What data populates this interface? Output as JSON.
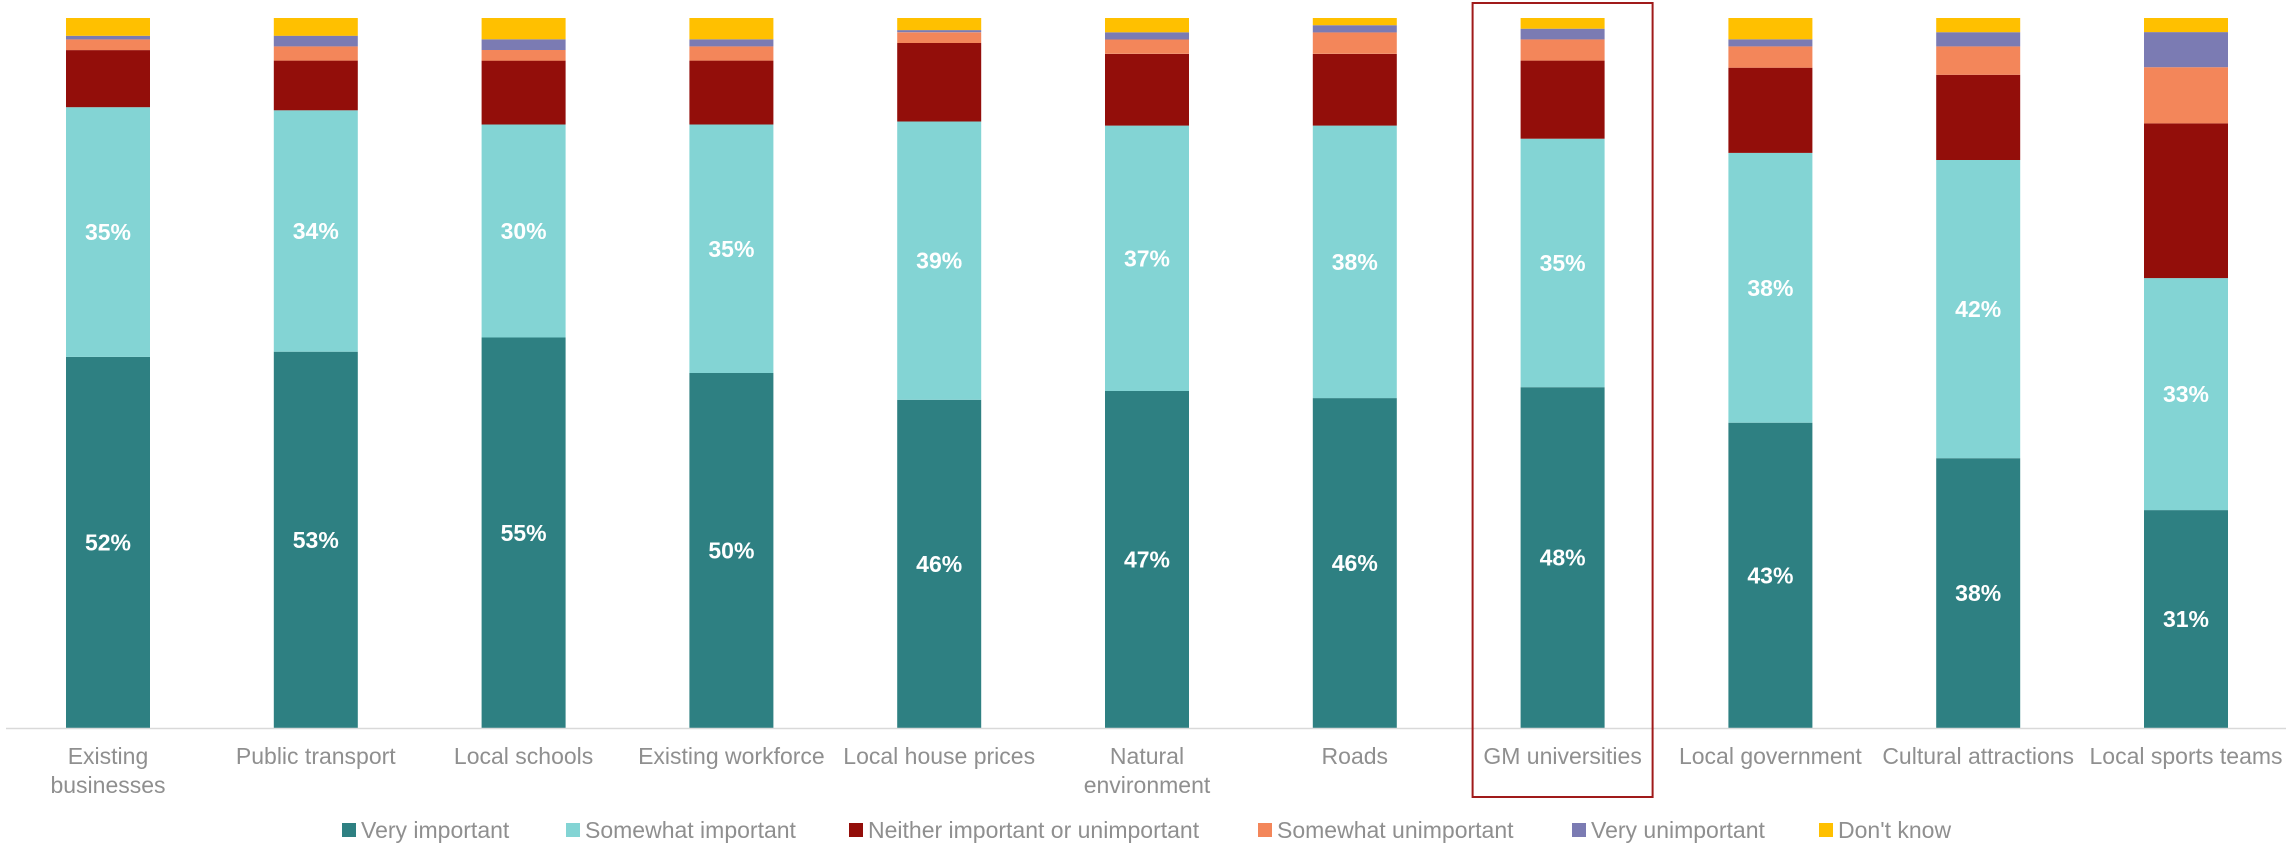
{
  "chart_data": {
    "type": "bar",
    "stacked": true,
    "normalized_percent": true,
    "categories": [
      [
        "Existing",
        "businesses"
      ],
      [
        "Public transport"
      ],
      [
        "Local schools"
      ],
      [
        "Existing workforce"
      ],
      [
        "Local house prices"
      ],
      [
        "Natural",
        "environment"
      ],
      [
        "Roads"
      ],
      [
        "GM universities"
      ],
      [
        "Local government"
      ],
      [
        "Cultural attractions"
      ],
      [
        "Local sports teams"
      ]
    ],
    "series": [
      {
        "name": "Very important",
        "color": "#2e8082",
        "values": [
          52,
          53,
          55,
          50,
          46,
          47,
          46,
          48,
          43,
          38,
          31
        ],
        "show_labels": true
      },
      {
        "name": "Somewhat important",
        "color": "#83d4d4",
        "values": [
          35,
          34,
          30,
          35,
          39,
          37,
          38,
          35,
          38,
          42,
          33
        ],
        "show_labels": true
      },
      {
        "name": "Neither important or unimportant",
        "color": "#930e0a",
        "values": [
          8,
          7,
          9,
          9,
          11,
          10,
          10,
          11,
          12,
          12,
          22
        ],
        "show_labels": false
      },
      {
        "name": "Somewhat unimportant",
        "color": "#f3865a",
        "values": [
          1.5,
          2,
          1.5,
          2,
          1.5,
          2,
          3,
          3,
          3,
          4,
          8
        ],
        "show_labels": false
      },
      {
        "name": "Very unimportant",
        "color": "#7b7bb3",
        "values": [
          0.5,
          1.5,
          1.5,
          1,
          0.3,
          1,
          1,
          1.5,
          1,
          2,
          5
        ],
        "show_labels": false
      },
      {
        "name": "Don't know",
        "color": "#ffc000",
        "values": [
          2.5,
          2.5,
          3,
          3,
          1.7,
          2,
          1,
          1.5,
          3,
          2,
          2
        ],
        "show_labels": false
      }
    ],
    "ylim": [
      0,
      100
    ],
    "label_suffix": "%",
    "highlighted_category": "GM universities",
    "highlight_color": "#a01a1a",
    "legend_position": "bottom",
    "grid": false,
    "axis_color": "#d9d9d9"
  }
}
